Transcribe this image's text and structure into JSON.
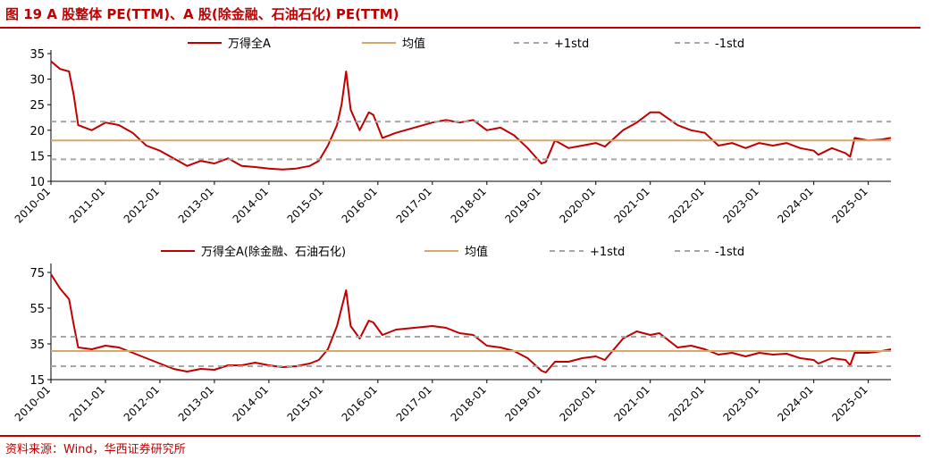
{
  "title": "图 19 A 股整体 PE(TTM)、A 股(除金融、石油石化) PE(TTM)",
  "source": "资料来源：Wind，华西证券研究所",
  "colors": {
    "accent": "#c00000",
    "series": "#c00000",
    "mean": "#d4a76a",
    "std": "#a6a6a6"
  },
  "chart_data": [
    {
      "type": "line",
      "title": "",
      "ylim": [
        10,
        35
      ],
      "yticks": [
        10,
        15,
        20,
        25,
        30,
        35
      ],
      "xticks": [
        "2010-01",
        "2011-01",
        "2012-01",
        "2013-01",
        "2014-01",
        "2015-01",
        "2016-01",
        "2017-01",
        "2018-01",
        "2019-01",
        "2020-01",
        "2021-01",
        "2022-01",
        "2023-01",
        "2024-01",
        "2025-01"
      ],
      "xrange": [
        "2010-01",
        "2025-06"
      ],
      "legend_position": "top",
      "series": [
        {
          "name": "万得全A",
          "kind": "line",
          "x": [
            "2010-01",
            "2010-03",
            "2010-05",
            "2010-06",
            "2010-07",
            "2010-10",
            "2011-01",
            "2011-04",
            "2011-07",
            "2011-10",
            "2012-01",
            "2012-04",
            "2012-07",
            "2012-10",
            "2013-01",
            "2013-04",
            "2013-07",
            "2013-10",
            "2014-01",
            "2014-04",
            "2014-07",
            "2014-10",
            "2014-12",
            "2015-02",
            "2015-04",
            "2015-05",
            "2015-06",
            "2015-07",
            "2015-09",
            "2015-11",
            "2015-12",
            "2016-02",
            "2016-05",
            "2016-09",
            "2017-01",
            "2017-04",
            "2017-07",
            "2017-10",
            "2018-01",
            "2018-04",
            "2018-07",
            "2018-10",
            "2019-01",
            "2019-02",
            "2019-04",
            "2019-07",
            "2019-10",
            "2020-01",
            "2020-03",
            "2020-07",
            "2020-10",
            "2021-01",
            "2021-03",
            "2021-07",
            "2021-10",
            "2022-01",
            "2022-04",
            "2022-07",
            "2022-10",
            "2023-01",
            "2023-04",
            "2023-07",
            "2023-10",
            "2024-01",
            "2024-02",
            "2024-05",
            "2024-08",
            "2024-09",
            "2024-10",
            "2025-01",
            "2025-04",
            "2025-06"
          ],
          "y": [
            33.5,
            32,
            31.5,
            27,
            21,
            20,
            21.5,
            21,
            19.5,
            17,
            16,
            14.5,
            13,
            14,
            13.5,
            14.5,
            13,
            12.8,
            12.5,
            12.3,
            12.5,
            13,
            14,
            17,
            21,
            25,
            31.5,
            24,
            20,
            23.5,
            23,
            18.5,
            19.5,
            20.5,
            21.5,
            22,
            21.5,
            22,
            20,
            20.5,
            19,
            16.5,
            13.5,
            13.8,
            18,
            16.5,
            17,
            17.5,
            16.8,
            20,
            21.5,
            23.5,
            23.5,
            21,
            20,
            19.5,
            17,
            17.5,
            16.5,
            17.5,
            17,
            17.5,
            16.5,
            16,
            15.2,
            16.5,
            15.5,
            14.8,
            18.5,
            18,
            18.2,
            18.5
          ]
        },
        {
          "name": "均值",
          "kind": "hline",
          "value": 18
        },
        {
          "name": "+1std",
          "kind": "hline",
          "value": 21.7
        },
        {
          "name": "-1std",
          "kind": "hline",
          "value": 14.3
        }
      ]
    },
    {
      "type": "line",
      "title": "",
      "ylim": [
        15,
        78
      ],
      "yticks": [
        15,
        35,
        55,
        75
      ],
      "xticks": [
        "2010-01",
        "2011-01",
        "2012-01",
        "2013-01",
        "2014-01",
        "2015-01",
        "2016-01",
        "2017-01",
        "2018-01",
        "2019-01",
        "2020-01",
        "2021-01",
        "2022-01",
        "2023-01",
        "2024-01",
        "2025-01"
      ],
      "xrange": [
        "2010-01",
        "2025-06"
      ],
      "legend_position": "top",
      "series": [
        {
          "name": "万得全A(除金融、石油石化)",
          "kind": "line",
          "x": [
            "2010-01",
            "2010-03",
            "2010-05",
            "2010-06",
            "2010-07",
            "2010-10",
            "2011-01",
            "2011-04",
            "2011-07",
            "2011-10",
            "2012-01",
            "2012-04",
            "2012-07",
            "2012-10",
            "2013-01",
            "2013-04",
            "2013-07",
            "2013-10",
            "2014-01",
            "2014-04",
            "2014-07",
            "2014-10",
            "2014-12",
            "2015-02",
            "2015-04",
            "2015-05",
            "2015-06",
            "2015-07",
            "2015-09",
            "2015-11",
            "2015-12",
            "2016-02",
            "2016-05",
            "2016-09",
            "2017-01",
            "2017-04",
            "2017-07",
            "2017-10",
            "2018-01",
            "2018-04",
            "2018-07",
            "2018-10",
            "2019-01",
            "2019-02",
            "2019-04",
            "2019-07",
            "2019-10",
            "2020-01",
            "2020-03",
            "2020-07",
            "2020-10",
            "2021-01",
            "2021-03",
            "2021-07",
            "2021-10",
            "2022-01",
            "2022-04",
            "2022-07",
            "2022-10",
            "2023-01",
            "2023-04",
            "2023-07",
            "2023-10",
            "2024-01",
            "2024-02",
            "2024-05",
            "2024-08",
            "2024-09",
            "2024-10",
            "2025-01",
            "2025-04",
            "2025-06"
          ],
          "y": [
            74,
            66,
            60,
            46,
            33,
            32,
            34,
            33,
            30,
            27,
            24,
            21,
            19.5,
            21,
            20.5,
            23,
            23,
            24.5,
            23,
            22,
            22.5,
            24,
            26,
            32,
            45,
            55,
            65,
            45,
            38,
            48,
            47,
            40,
            43,
            44,
            45,
            44,
            41,
            40,
            34,
            33,
            31,
            27,
            20,
            19,
            25,
            25,
            27,
            28,
            26,
            38,
            42,
            40,
            41,
            33,
            34,
            32,
            29,
            30,
            28,
            30,
            29,
            29.5,
            27,
            26,
            24,
            27,
            26,
            23,
            30,
            30,
            31,
            32
          ]
        },
        {
          "name": "均值",
          "kind": "hline",
          "value": 31
        },
        {
          "name": "+1std",
          "kind": "hline",
          "value": 39
        },
        {
          "name": "-1std",
          "kind": "hline",
          "value": 22.5
        }
      ]
    }
  ]
}
